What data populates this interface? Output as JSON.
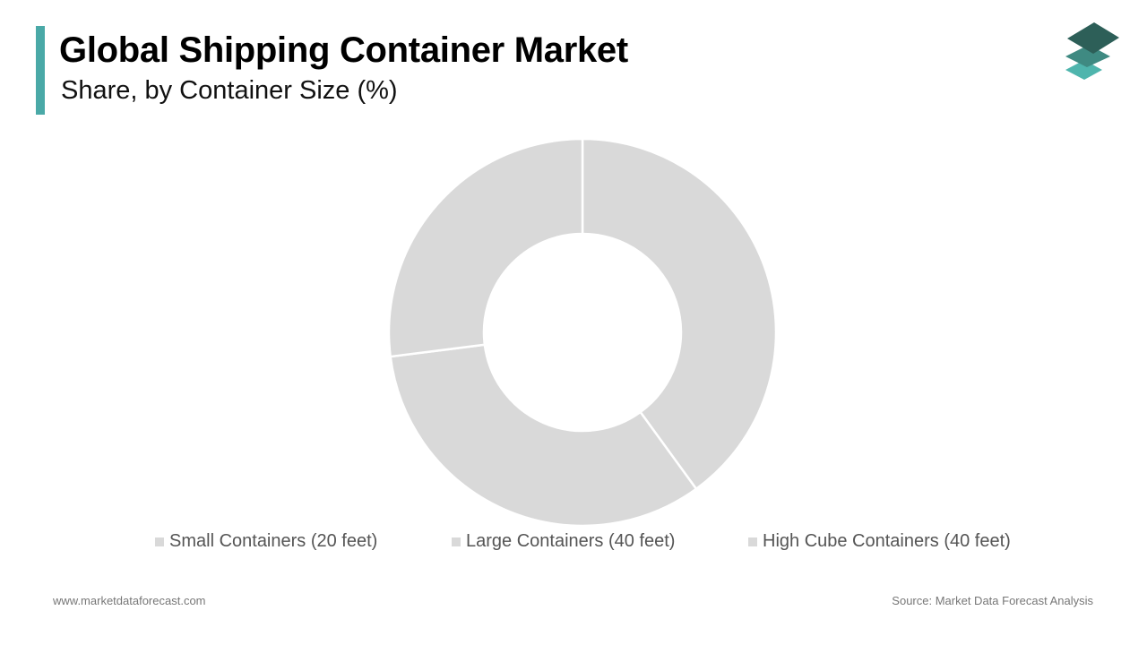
{
  "header": {
    "title": "Global Shipping Container Market",
    "subtitle": "Share, by Container Size (%)"
  },
  "colors": {
    "accent": "#4aa9a7",
    "slice": "#d9d9d9",
    "slice_border": "#ffffff",
    "logo_dark": "#2d5f58",
    "logo_mid": "#3f8a82",
    "logo_light": "#4fb5ad"
  },
  "logo": {
    "icon": "stacked-layers-icon"
  },
  "chart_data": {
    "type": "pie",
    "donut": true,
    "categories": [
      "Small Containers (20 feet)",
      "Large Containers (40 feet)",
      "High Cube Containers (40 feet)"
    ],
    "values": [
      40,
      33,
      27
    ],
    "legend_position": "bottom"
  },
  "footer": {
    "website": "www.marketdataforecast.com",
    "source": "Source: Market Data Forecast Analysis"
  }
}
